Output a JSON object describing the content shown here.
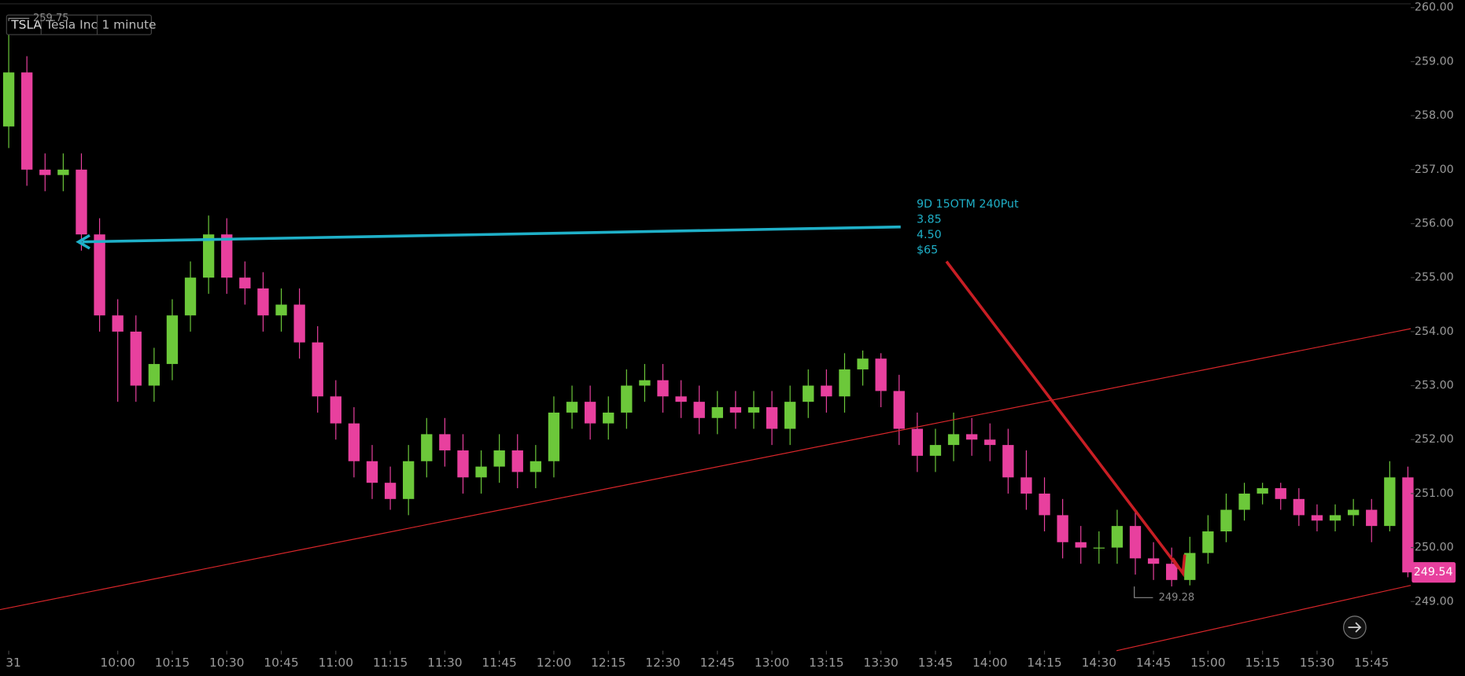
{
  "header": {
    "symbol": "TSLA",
    "name": "Tesla Inc",
    "interval": "1 minute"
  },
  "chart_data": {
    "type": "candlestick",
    "x": [
      570,
      575,
      580,
      585,
      590,
      595,
      600,
      605,
      610,
      615,
      620,
      625,
      630,
      635,
      640,
      645,
      650,
      655,
      660,
      665,
      670,
      675,
      680,
      685,
      690,
      695,
      700,
      705,
      710,
      715,
      720,
      725,
      730,
      735,
      740,
      745,
      750,
      755,
      760,
      765,
      770,
      775,
      780,
      785,
      790,
      795,
      800,
      805,
      810,
      815,
      820,
      825,
      830,
      835,
      840,
      845,
      850,
      855,
      860,
      865,
      870,
      875,
      880,
      885,
      890,
      895,
      900,
      905,
      910,
      915,
      920,
      925,
      930,
      935,
      940,
      945,
      950,
      955
    ],
    "open": [
      257.8,
      258.8,
      257.0,
      256.9,
      257.0,
      255.8,
      254.3,
      254.0,
      253.0,
      253.4,
      254.3,
      255.0,
      255.8,
      255.0,
      254.8,
      254.3,
      254.5,
      253.8,
      252.8,
      252.3,
      251.6,
      251.2,
      250.9,
      251.6,
      252.1,
      251.8,
      251.3,
      251.5,
      251.8,
      251.4,
      251.6,
      252.5,
      252.7,
      252.3,
      252.5,
      253.0,
      253.1,
      252.8,
      252.7,
      252.4,
      252.6,
      252.5,
      252.6,
      252.2,
      252.7,
      253.0,
      252.8,
      253.3,
      253.5,
      252.9,
      252.2,
      251.7,
      251.9,
      252.1,
      252.0,
      251.9,
      251.3,
      251.0,
      250.6,
      250.1,
      250.0,
      250.0,
      250.4,
      249.8,
      249.7,
      249.4,
      249.9,
      250.3,
      250.7,
      251.0,
      251.1,
      250.9,
      250.6,
      250.5,
      250.6,
      250.7,
      250.4,
      251.3
    ],
    "high": [
      259.75,
      259.1,
      257.3,
      257.3,
      257.3,
      256.1,
      254.6,
      254.3,
      253.7,
      254.6,
      255.3,
      256.15,
      256.1,
      255.3,
      255.1,
      254.8,
      254.8,
      254.1,
      253.1,
      252.6,
      251.9,
      251.5,
      251.9,
      252.4,
      252.4,
      252.1,
      251.8,
      252.1,
      252.1,
      251.9,
      252.8,
      253.0,
      253.0,
      252.8,
      253.3,
      253.4,
      253.4,
      253.1,
      253.0,
      252.9,
      252.9,
      252.9,
      252.9,
      253.0,
      253.3,
      253.3,
      253.6,
      253.65,
      253.6,
      253.2,
      252.5,
      252.2,
      252.5,
      252.4,
      252.3,
      252.2,
      251.8,
      251.3,
      250.9,
      250.4,
      250.3,
      250.7,
      250.7,
      250.1,
      250.0,
      250.2,
      250.6,
      251.0,
      251.2,
      251.2,
      251.2,
      251.1,
      250.8,
      250.8,
      250.9,
      250.9,
      251.6,
      251.5
    ],
    "low": [
      257.4,
      256.7,
      256.6,
      256.6,
      255.5,
      254.0,
      252.7,
      252.7,
      252.7,
      253.1,
      254.0,
      254.7,
      254.7,
      254.5,
      254.0,
      254.0,
      253.5,
      252.5,
      252.0,
      251.3,
      250.9,
      250.7,
      250.6,
      251.3,
      251.5,
      251.0,
      251.0,
      251.2,
      251.1,
      251.1,
      251.3,
      252.2,
      252.0,
      252.0,
      252.2,
      252.7,
      252.5,
      252.4,
      252.1,
      252.1,
      252.2,
      252.2,
      251.9,
      251.9,
      252.4,
      252.5,
      252.5,
      253.0,
      252.6,
      251.9,
      251.4,
      251.4,
      251.6,
      251.7,
      251.6,
      251.0,
      250.7,
      250.3,
      249.8,
      249.7,
      249.7,
      249.7,
      249.5,
      249.4,
      249.28,
      249.3,
      249.7,
      250.1,
      250.5,
      250.8,
      250.7,
      250.4,
      250.3,
      250.3,
      250.4,
      250.1,
      250.3,
      249.45
    ],
    "close": [
      258.8,
      257.0,
      256.9,
      257.0,
      255.8,
      254.3,
      254.0,
      253.0,
      253.4,
      254.3,
      255.0,
      255.8,
      255.0,
      254.8,
      254.3,
      254.5,
      253.8,
      252.8,
      252.3,
      251.6,
      251.2,
      250.9,
      251.6,
      252.1,
      251.8,
      251.3,
      251.5,
      251.8,
      251.4,
      251.6,
      252.5,
      252.7,
      252.3,
      252.5,
      253.0,
      253.1,
      252.8,
      252.7,
      252.4,
      252.6,
      252.5,
      252.6,
      252.2,
      252.7,
      253.0,
      252.8,
      253.3,
      253.5,
      252.9,
      252.2,
      251.7,
      251.9,
      252.1,
      252.0,
      251.9,
      251.3,
      251.0,
      250.6,
      250.1,
      250.0,
      250.0,
      250.4,
      249.8,
      249.7,
      249.4,
      249.9,
      250.3,
      250.7,
      251.0,
      251.1,
      250.9,
      250.6,
      250.5,
      250.6,
      250.7,
      250.4,
      251.3,
      249.54
    ],
    "up_color": "#6cc83a",
    "down_color": "#e8409e",
    "xlim": [
      567.6,
      955.8
    ],
    "xticks": [
      {
        "value": 570,
        "label": "31"
      },
      {
        "value": 600,
        "label": "10:00"
      },
      {
        "value": 615,
        "label": "10:15"
      },
      {
        "value": 630,
        "label": "10:30"
      },
      {
        "value": 645,
        "label": "10:45"
      },
      {
        "value": 660,
        "label": "11:00"
      },
      {
        "value": 675,
        "label": "11:15"
      },
      {
        "value": 690,
        "label": "11:30"
      },
      {
        "value": 705,
        "label": "11:45"
      },
      {
        "value": 720,
        "label": "12:00"
      },
      {
        "value": 735,
        "label": "12:15"
      },
      {
        "value": 750,
        "label": "12:30"
      },
      {
        "value": 765,
        "label": "12:45"
      },
      {
        "value": 780,
        "label": "13:00"
      },
      {
        "value": 795,
        "label": "13:15"
      },
      {
        "value": 810,
        "label": "13:30"
      },
      {
        "value": 825,
        "label": "13:45"
      },
      {
        "value": 840,
        "label": "14:00"
      },
      {
        "value": 855,
        "label": "14:15"
      },
      {
        "value": 870,
        "label": "14:30"
      },
      {
        "value": 885,
        "label": "14:45"
      },
      {
        "value": 900,
        "label": "15:00"
      },
      {
        "value": 915,
        "label": "15:15"
      },
      {
        "value": 930,
        "label": "15:30"
      },
      {
        "value": 945,
        "label": "15:45"
      }
    ],
    "ylim": [
      248.09,
      260.14
    ],
    "yticks": [
      {
        "value": 249,
        "label": "249.00"
      },
      {
        "value": 250,
        "label": "250.00"
      },
      {
        "value": 251,
        "label": "251.00"
      },
      {
        "value": 252,
        "label": "252.00"
      },
      {
        "value": 253,
        "label": "253.00"
      },
      {
        "value": 254,
        "label": "254.00"
      },
      {
        "value": 255,
        "label": "255.00"
      },
      {
        "value": 256,
        "label": "256.00"
      },
      {
        "value": 257,
        "label": "257.00"
      },
      {
        "value": 258,
        "label": "258.00"
      },
      {
        "value": 259,
        "label": "259.00"
      },
      {
        "value": 260,
        "label": "260.00"
      }
    ],
    "annotation": [
      "9D 15OTM 240Put",
      "3.85",
      "4.50",
      "$65"
    ]
  }
}
